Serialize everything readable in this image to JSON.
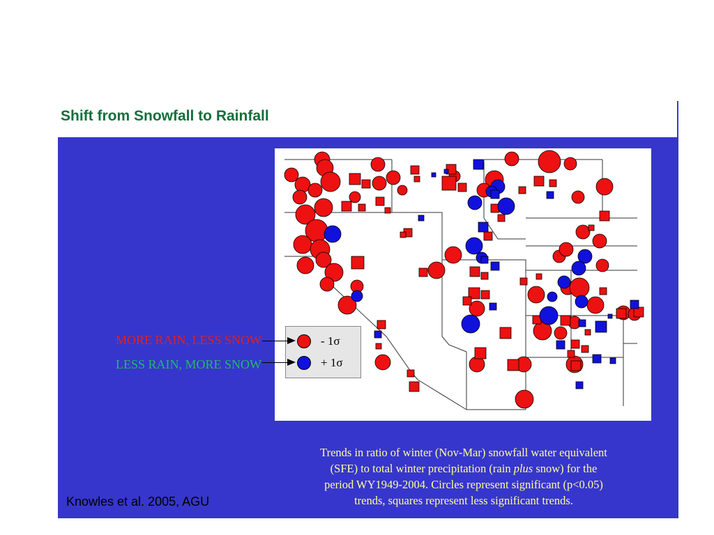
{
  "slide": {
    "title": "Shift from Snowfall to Rainfall",
    "citation": "Knowles et al. 2005, AGU"
  },
  "legend": {
    "more_rain_label": "MORE RAIN, LESS SNOW",
    "less_rain_label": "LESS RAIN, MORE SNOW",
    "red_symbol_text": "- 1σ",
    "blue_symbol_text": "+ 1σ"
  },
  "caption": {
    "line1": "Trends in ratio of winter (Nov-Mar) snowfall water equivalent",
    "line2_a": "(SFE) to total winter precipitation (rain ",
    "line2_em": "plus",
    "line2_b": " snow) for the",
    "line3": "period WY1949-2004. Circles represent significant (p<0.05)",
    "line4": "trends, squares represent less significant trends."
  },
  "colors": {
    "panel": "#3636cc",
    "decrease": "#ee1111",
    "increase": "#1111dd",
    "title": "#11703a",
    "caption": "#ffff99"
  }
}
